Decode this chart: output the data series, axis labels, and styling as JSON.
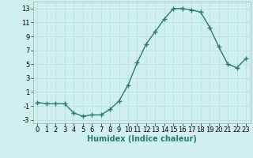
{
  "x": [
    0,
    1,
    2,
    3,
    4,
    5,
    6,
    7,
    8,
    9,
    10,
    11,
    12,
    13,
    14,
    15,
    16,
    17,
    18,
    19,
    20,
    21,
    22,
    23
  ],
  "y": [
    -0.5,
    -0.7,
    -0.7,
    -0.7,
    -2.0,
    -2.5,
    -2.3,
    -2.3,
    -1.5,
    -0.3,
    2.0,
    5.2,
    7.9,
    9.7,
    11.5,
    13.0,
    13.0,
    12.8,
    12.5,
    10.3,
    7.5,
    5.0,
    4.5,
    5.8
  ],
  "line_color": "#2d7a6a",
  "marker": "+",
  "marker_size": 4,
  "linewidth": 1.0,
  "bg_color": "#cff0ec",
  "grid_color": "#b8ddd8",
  "xlabel": "Humidex (Indice chaleur)",
  "xlabel_fontsize": 7,
  "tick_fontsize": 6,
  "xlim": [
    -0.5,
    23.5
  ],
  "ylim": [
    -3.5,
    14.0
  ],
  "yticks": [
    -3,
    -1,
    1,
    3,
    5,
    7,
    9,
    11,
    13
  ],
  "xticks": [
    0,
    1,
    2,
    3,
    4,
    5,
    6,
    7,
    8,
    9,
    10,
    11,
    12,
    13,
    14,
    15,
    16,
    17,
    18,
    19,
    20,
    21,
    22,
    23
  ]
}
